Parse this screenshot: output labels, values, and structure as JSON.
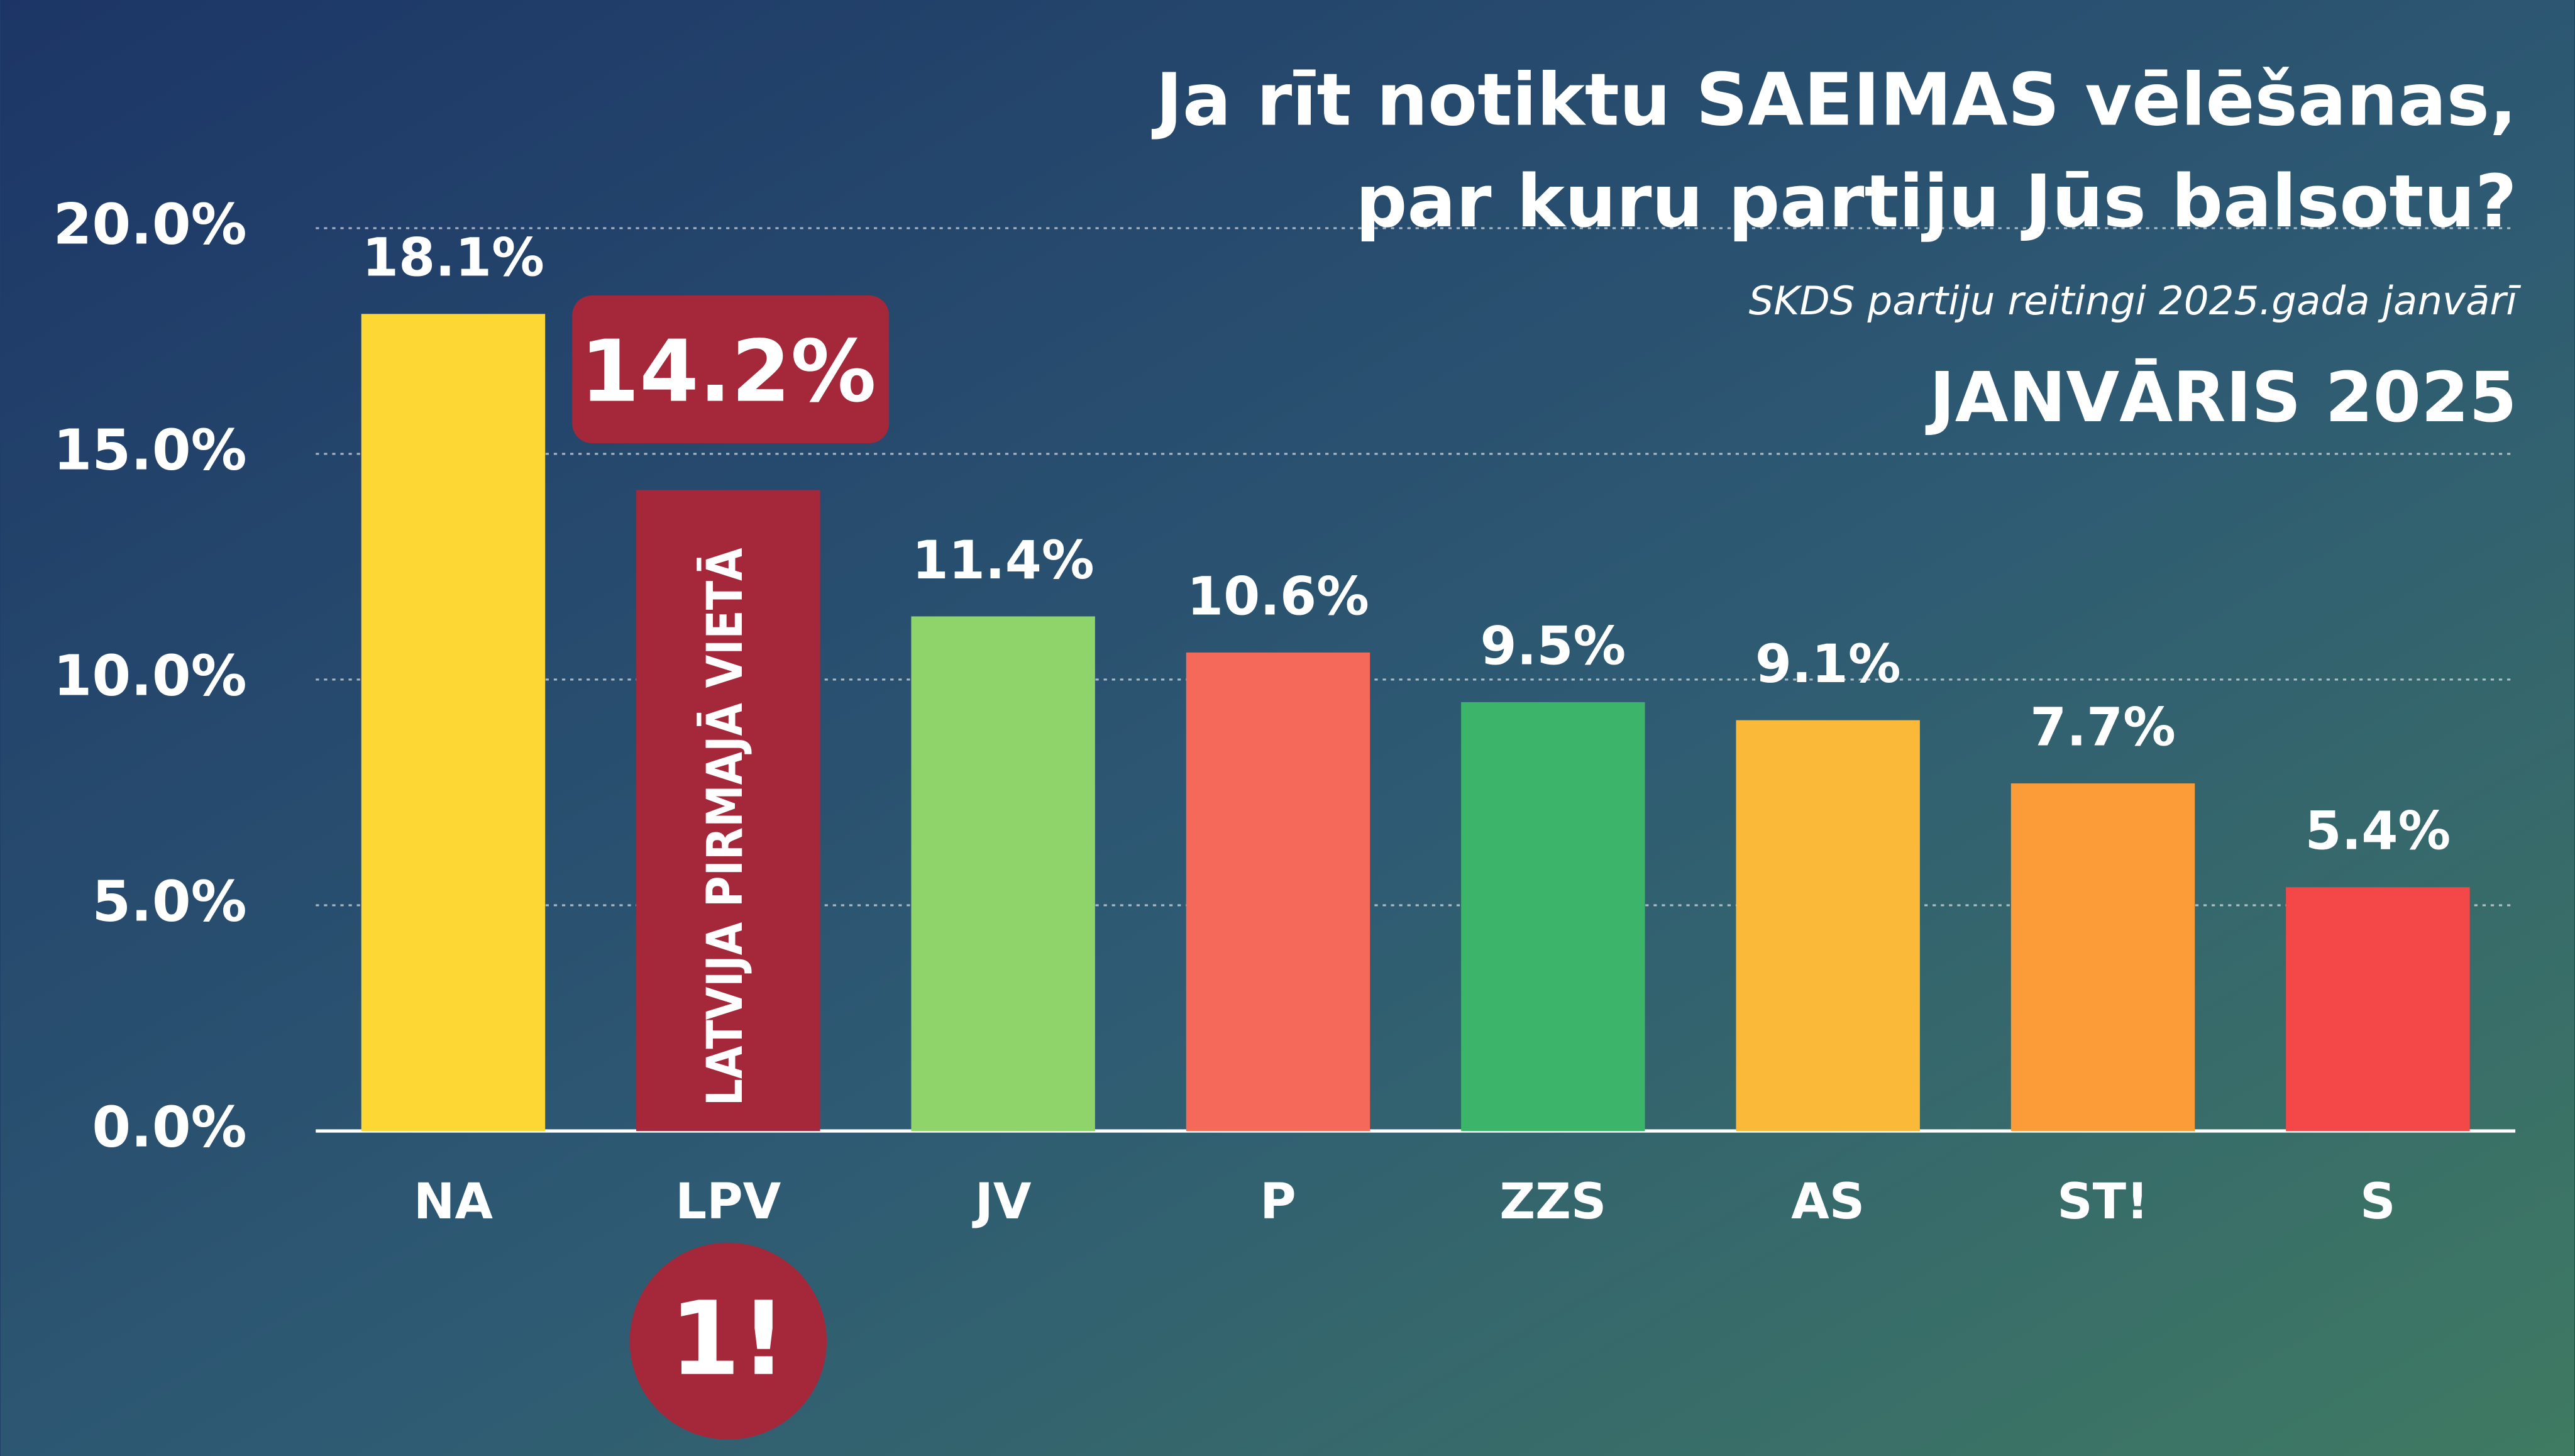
{
  "chart_data": {
    "type": "bar",
    "title": [
      "Ja rīt notiktu SAEIMAS vēlēšanas,",
      "par kuru partiju Jūs balsotu?"
    ],
    "subtitle": "SKDS partiju reitingi 2025.gada janvārī",
    "date_label": "JANVĀRIS 2025",
    "highlight": "LPV",
    "highlight_text": "LATVIJA PIRMAJĀ VIETĀ",
    "badge": "1!",
    "categories": [
      "NA",
      "LPV",
      "JV",
      "P",
      "ZZS",
      "AS",
      "ST!",
      "S"
    ],
    "values": [
      18.1,
      14.2,
      11.4,
      10.6,
      9.5,
      9.1,
      7.7,
      5.4
    ],
    "value_labels": [
      "18.1%",
      "14.2%",
      "11.4%",
      "10.6%",
      "9.5%",
      "9.1%",
      "7.7%",
      "5.4%"
    ],
    "colors": [
      "#fdd835",
      "#a4283a",
      "#8fd46a",
      "#f4695a",
      "#3cb56b",
      "#fbb93a",
      "#fb9c38",
      "#f44848"
    ],
    "ylim": [
      0,
      20
    ],
    "yticks": [
      {
        "value": 0,
        "label": "0.0%"
      },
      {
        "value": 5,
        "label": "5.0%"
      },
      {
        "value": 10,
        "label": "10.0%"
      },
      {
        "value": 15,
        "label": "15.0%"
      },
      {
        "value": 20,
        "label": "20.0%"
      }
    ],
    "grid": true
  }
}
